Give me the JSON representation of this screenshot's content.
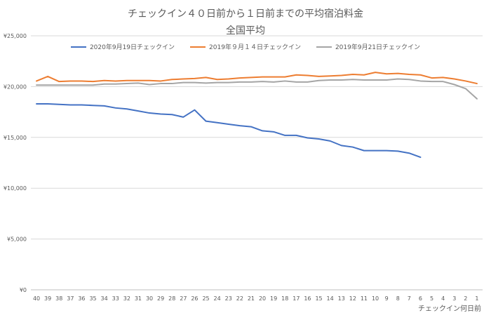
{
  "chart_data": {
    "type": "line",
    "title": "チェックイン４０日前から１日前までの平均宿泊料金",
    "subtitle": "全国平均",
    "xlabel": "チェックイン何日前",
    "ylabel": "",
    "ylim": [
      0,
      25000
    ],
    "y_ticks": [
      "¥0",
      "¥5,000",
      "¥10,000",
      "¥15,000",
      "¥20,000",
      "¥25,000"
    ],
    "grid": true,
    "legend_position": "top",
    "x": [
      40,
      39,
      38,
      37,
      36,
      35,
      34,
      33,
      32,
      31,
      30,
      29,
      28,
      27,
      26,
      25,
      24,
      23,
      22,
      21,
      20,
      19,
      18,
      17,
      16,
      15,
      14,
      13,
      12,
      11,
      10,
      9,
      8,
      7,
      6,
      5,
      4,
      3,
      2,
      1
    ],
    "series": [
      {
        "name": "2020年9月19日チェックイン",
        "color": "#4472C4",
        "values": [
          18300,
          18300,
          18250,
          18200,
          18200,
          18150,
          18100,
          17900,
          17800,
          17600,
          17400,
          17300,
          17250,
          17000,
          17700,
          16600,
          16450,
          16300,
          16150,
          16050,
          15650,
          15550,
          15200,
          15200,
          14950,
          14850,
          14650,
          14200,
          14050,
          13700,
          13700,
          13700,
          13650,
          13450,
          13050,
          null,
          null,
          null,
          null,
          null
        ]
      },
      {
        "name": "2019年９月１４日チェックイン",
        "color": "#ED7D31",
        "values": [
          20550,
          21000,
          20500,
          20550,
          20550,
          20500,
          20600,
          20550,
          20600,
          20600,
          20600,
          20550,
          20700,
          20750,
          20800,
          20900,
          20700,
          20750,
          20850,
          20900,
          20950,
          20950,
          20950,
          21150,
          21100,
          21000,
          21050,
          21100,
          21200,
          21150,
          21400,
          21250,
          21300,
          21200,
          21150,
          20850,
          20900,
          20750,
          20550,
          20300
        ]
      },
      {
        "name": "2019年9月21日チェックイン",
        "color": "#A5A5A5",
        "values": [
          20150,
          20150,
          20150,
          20150,
          20150,
          20150,
          20250,
          20250,
          20300,
          20350,
          20200,
          20300,
          20300,
          20400,
          20400,
          20350,
          20400,
          20400,
          20450,
          20450,
          20500,
          20450,
          20550,
          20450,
          20450,
          20600,
          20650,
          20650,
          20700,
          20650,
          20650,
          20650,
          20750,
          20700,
          20550,
          20500,
          20500,
          20200,
          19800,
          18800
        ]
      }
    ]
  }
}
